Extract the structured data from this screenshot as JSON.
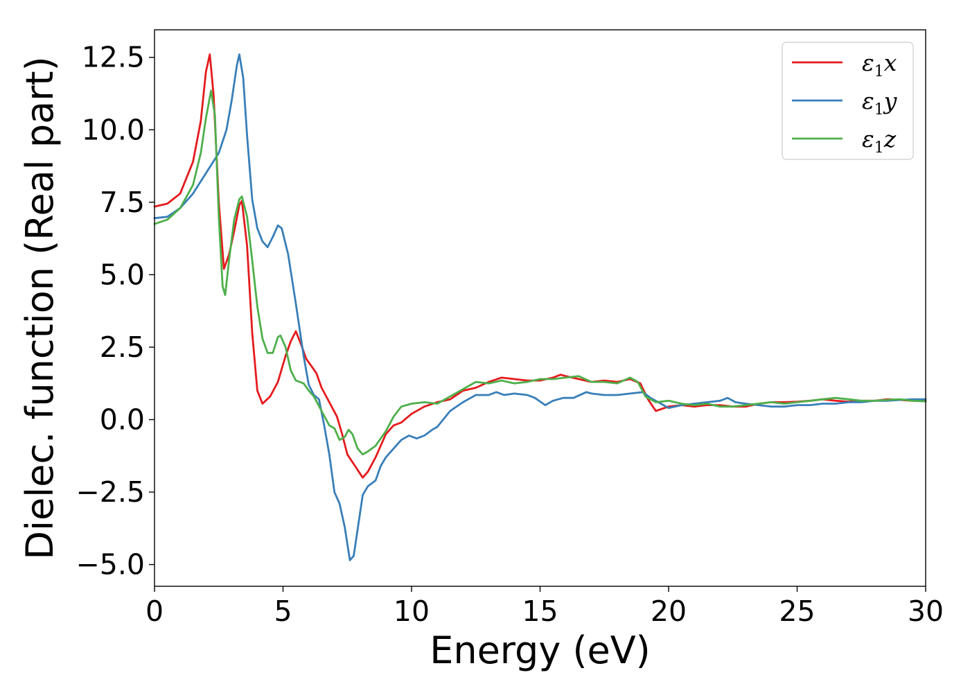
{
  "chart_data": {
    "type": "line",
    "title": "",
    "xlabel": "Energy (eV)",
    "ylabel": "Dielec. function (Real part)",
    "xlim": [
      0,
      30
    ],
    "ylim": [
      -5.75,
      13.45
    ],
    "grid": false,
    "legend_position": "top-right",
    "x_ticks": [
      0,
      5,
      10,
      15,
      20,
      25,
      30
    ],
    "x_tick_labels": [
      "0",
      "5",
      "10",
      "15",
      "20",
      "25",
      "30"
    ],
    "y_ticks": [
      -5.0,
      -2.5,
      0.0,
      2.5,
      5.0,
      7.5,
      10.0,
      12.5
    ],
    "y_tick_labels": [
      "−5.0",
      "−2.5",
      "0.0",
      "2.5",
      "5.0",
      "7.5",
      "10.0",
      "12.5"
    ],
    "series": [
      {
        "name": "ε₁x",
        "legend_main": "ε",
        "legend_sub": "1",
        "legend_var": "x",
        "color": "#e41a1c",
        "points": [
          [
            0,
            7.35
          ],
          [
            0.5,
            7.45
          ],
          [
            1.0,
            7.8
          ],
          [
            1.5,
            8.9
          ],
          [
            1.8,
            10.3
          ],
          [
            2.0,
            12.0
          ],
          [
            2.15,
            12.6
          ],
          [
            2.3,
            11.2
          ],
          [
            2.5,
            7.5
          ],
          [
            2.7,
            5.2
          ],
          [
            2.9,
            5.7
          ],
          [
            3.1,
            6.5
          ],
          [
            3.3,
            7.4
          ],
          [
            3.4,
            7.55
          ],
          [
            3.6,
            6.0
          ],
          [
            3.8,
            3.0
          ],
          [
            4.0,
            1.0
          ],
          [
            4.2,
            0.55
          ],
          [
            4.5,
            0.8
          ],
          [
            4.8,
            1.3
          ],
          [
            5.1,
            2.2
          ],
          [
            5.3,
            2.7
          ],
          [
            5.5,
            3.05
          ],
          [
            5.7,
            2.6
          ],
          [
            5.9,
            2.1
          ],
          [
            6.1,
            1.85
          ],
          [
            6.3,
            1.6
          ],
          [
            6.5,
            1.1
          ],
          [
            6.8,
            0.6
          ],
          [
            7.1,
            0.1
          ],
          [
            7.3,
            -0.5
          ],
          [
            7.5,
            -1.2
          ],
          [
            7.8,
            -1.6
          ],
          [
            8.1,
            -2.0
          ],
          [
            8.3,
            -1.8
          ],
          [
            8.6,
            -1.3
          ],
          [
            9.0,
            -0.5
          ],
          [
            9.3,
            -0.2
          ],
          [
            9.6,
            -0.1
          ],
          [
            10.0,
            0.2
          ],
          [
            10.5,
            0.45
          ],
          [
            11.0,
            0.6
          ],
          [
            11.5,
            0.7
          ],
          [
            12.0,
            1.0
          ],
          [
            12.5,
            1.1
          ],
          [
            13.0,
            1.3
          ],
          [
            13.5,
            1.45
          ],
          [
            14.0,
            1.4
          ],
          [
            14.5,
            1.35
          ],
          [
            15.0,
            1.35
          ],
          [
            15.5,
            1.45
          ],
          [
            15.8,
            1.55
          ],
          [
            16.0,
            1.5
          ],
          [
            16.5,
            1.4
          ],
          [
            17.0,
            1.3
          ],
          [
            17.5,
            1.35
          ],
          [
            18.0,
            1.3
          ],
          [
            18.5,
            1.4
          ],
          [
            18.9,
            1.25
          ],
          [
            19.2,
            0.7
          ],
          [
            19.5,
            0.3
          ],
          [
            20.0,
            0.45
          ],
          [
            20.5,
            0.5
          ],
          [
            21.0,
            0.45
          ],
          [
            21.5,
            0.5
          ],
          [
            22.0,
            0.5
          ],
          [
            22.5,
            0.45
          ],
          [
            23.0,
            0.45
          ],
          [
            23.5,
            0.55
          ],
          [
            24.0,
            0.6
          ],
          [
            24.5,
            0.6
          ],
          [
            25.0,
            0.62
          ],
          [
            25.5,
            0.65
          ],
          [
            26.0,
            0.7
          ],
          [
            26.5,
            0.65
          ],
          [
            27.0,
            0.62
          ],
          [
            27.5,
            0.65
          ],
          [
            28.0,
            0.65
          ],
          [
            28.5,
            0.7
          ],
          [
            29.0,
            0.68
          ],
          [
            29.5,
            0.65
          ],
          [
            30.0,
            0.65
          ]
        ]
      },
      {
        "name": "ε₁y",
        "legend_main": "ε",
        "legend_sub": "1",
        "legend_var": "y",
        "color": "#377eb8",
        "points": [
          [
            0,
            6.95
          ],
          [
            0.5,
            7.0
          ],
          [
            1.0,
            7.3
          ],
          [
            1.5,
            7.8
          ],
          [
            2.0,
            8.5
          ],
          [
            2.5,
            9.2
          ],
          [
            2.8,
            10.0
          ],
          [
            3.0,
            11.0
          ],
          [
            3.2,
            12.2
          ],
          [
            3.3,
            12.6
          ],
          [
            3.45,
            11.8
          ],
          [
            3.6,
            9.8
          ],
          [
            3.8,
            7.6
          ],
          [
            4.0,
            6.6
          ],
          [
            4.2,
            6.15
          ],
          [
            4.4,
            5.95
          ],
          [
            4.6,
            6.3
          ],
          [
            4.8,
            6.7
          ],
          [
            4.95,
            6.6
          ],
          [
            5.2,
            5.7
          ],
          [
            5.5,
            4.0
          ],
          [
            5.8,
            2.2
          ],
          [
            6.0,
            1.2
          ],
          [
            6.2,
            0.85
          ],
          [
            6.4,
            0.7
          ],
          [
            6.6,
            -0.2
          ],
          [
            6.8,
            -1.2
          ],
          [
            7.0,
            -2.5
          ],
          [
            7.2,
            -2.9
          ],
          [
            7.4,
            -3.7
          ],
          [
            7.6,
            -4.85
          ],
          [
            7.75,
            -4.7
          ],
          [
            7.9,
            -3.8
          ],
          [
            8.1,
            -2.6
          ],
          [
            8.3,
            -2.3
          ],
          [
            8.6,
            -2.1
          ],
          [
            8.8,
            -1.6
          ],
          [
            9.0,
            -1.3
          ],
          [
            9.3,
            -1.0
          ],
          [
            9.6,
            -0.7
          ],
          [
            9.9,
            -0.55
          ],
          [
            10.2,
            -0.65
          ],
          [
            10.5,
            -0.55
          ],
          [
            10.8,
            -0.35
          ],
          [
            11.0,
            -0.25
          ],
          [
            11.5,
            0.3
          ],
          [
            12.0,
            0.6
          ],
          [
            12.3,
            0.75
          ],
          [
            12.5,
            0.85
          ],
          [
            13.0,
            0.85
          ],
          [
            13.3,
            0.95
          ],
          [
            13.6,
            0.85
          ],
          [
            14.0,
            0.9
          ],
          [
            14.5,
            0.85
          ],
          [
            14.8,
            0.75
          ],
          [
            15.2,
            0.5
          ],
          [
            15.5,
            0.65
          ],
          [
            15.9,
            0.75
          ],
          [
            16.3,
            0.75
          ],
          [
            16.8,
            0.95
          ],
          [
            17.0,
            0.9
          ],
          [
            17.5,
            0.85
          ],
          [
            18.0,
            0.85
          ],
          [
            18.5,
            0.9
          ],
          [
            19.0,
            0.95
          ],
          [
            19.3,
            0.75
          ],
          [
            19.7,
            0.55
          ],
          [
            20.0,
            0.4
          ],
          [
            20.5,
            0.5
          ],
          [
            21.0,
            0.55
          ],
          [
            21.5,
            0.6
          ],
          [
            22.0,
            0.65
          ],
          [
            22.3,
            0.75
          ],
          [
            22.6,
            0.6
          ],
          [
            23.0,
            0.55
          ],
          [
            23.5,
            0.5
          ],
          [
            24.0,
            0.45
          ],
          [
            24.5,
            0.45
          ],
          [
            25.0,
            0.5
          ],
          [
            25.5,
            0.5
          ],
          [
            26.0,
            0.55
          ],
          [
            26.5,
            0.55
          ],
          [
            27.0,
            0.6
          ],
          [
            27.5,
            0.6
          ],
          [
            28.0,
            0.65
          ],
          [
            28.5,
            0.65
          ],
          [
            29.0,
            0.68
          ],
          [
            29.5,
            0.7
          ],
          [
            30.0,
            0.7
          ]
        ]
      },
      {
        "name": "ε₁z",
        "legend_main": "ε",
        "legend_sub": "1",
        "legend_var": "z",
        "color": "#4daf4a",
        "points": [
          [
            0,
            6.75
          ],
          [
            0.5,
            6.9
          ],
          [
            1.0,
            7.3
          ],
          [
            1.5,
            8.1
          ],
          [
            1.8,
            9.2
          ],
          [
            2.0,
            10.4
          ],
          [
            2.2,
            11.35
          ],
          [
            2.35,
            10.5
          ],
          [
            2.5,
            7.0
          ],
          [
            2.65,
            4.6
          ],
          [
            2.75,
            4.3
          ],
          [
            2.9,
            5.5
          ],
          [
            3.1,
            6.9
          ],
          [
            3.3,
            7.6
          ],
          [
            3.4,
            7.7
          ],
          [
            3.6,
            7.0
          ],
          [
            3.8,
            5.5
          ],
          [
            4.0,
            3.9
          ],
          [
            4.2,
            2.8
          ],
          [
            4.4,
            2.3
          ],
          [
            4.6,
            2.3
          ],
          [
            4.8,
            2.85
          ],
          [
            4.9,
            2.9
          ],
          [
            5.1,
            2.5
          ],
          [
            5.3,
            1.7
          ],
          [
            5.5,
            1.35
          ],
          [
            5.8,
            1.25
          ],
          [
            6.0,
            1.0
          ],
          [
            6.2,
            0.8
          ],
          [
            6.5,
            0.3
          ],
          [
            6.8,
            -0.2
          ],
          [
            7.0,
            -0.3
          ],
          [
            7.2,
            -0.7
          ],
          [
            7.4,
            -0.6
          ],
          [
            7.55,
            -0.35
          ],
          [
            7.7,
            -0.5
          ],
          [
            7.9,
            -1.0
          ],
          [
            8.1,
            -1.2
          ],
          [
            8.3,
            -1.1
          ],
          [
            8.6,
            -0.9
          ],
          [
            9.0,
            -0.4
          ],
          [
            9.3,
            0.1
          ],
          [
            9.6,
            0.45
          ],
          [
            10.0,
            0.55
          ],
          [
            10.5,
            0.6
          ],
          [
            11.0,
            0.55
          ],
          [
            11.5,
            0.8
          ],
          [
            12.0,
            1.05
          ],
          [
            12.5,
            1.3
          ],
          [
            13.0,
            1.25
          ],
          [
            13.5,
            1.35
          ],
          [
            14.0,
            1.25
          ],
          [
            14.5,
            1.3
          ],
          [
            15.0,
            1.4
          ],
          [
            15.5,
            1.4
          ],
          [
            16.0,
            1.45
          ],
          [
            16.5,
            1.5
          ],
          [
            17.0,
            1.3
          ],
          [
            17.5,
            1.3
          ],
          [
            18.0,
            1.25
          ],
          [
            18.5,
            1.45
          ],
          [
            18.8,
            1.3
          ],
          [
            19.1,
            0.8
          ],
          [
            19.5,
            0.6
          ],
          [
            20.0,
            0.65
          ],
          [
            20.5,
            0.55
          ],
          [
            21.0,
            0.5
          ],
          [
            21.5,
            0.55
          ],
          [
            22.0,
            0.45
          ],
          [
            22.5,
            0.45
          ],
          [
            23.0,
            0.5
          ],
          [
            23.5,
            0.55
          ],
          [
            24.0,
            0.6
          ],
          [
            24.5,
            0.55
          ],
          [
            25.0,
            0.6
          ],
          [
            25.5,
            0.65
          ],
          [
            26.0,
            0.7
          ],
          [
            26.5,
            0.75
          ],
          [
            27.0,
            0.7
          ],
          [
            27.5,
            0.65
          ],
          [
            28.0,
            0.65
          ],
          [
            28.5,
            0.68
          ],
          [
            29.0,
            0.7
          ],
          [
            29.5,
            0.65
          ],
          [
            30.0,
            0.63
          ]
        ]
      }
    ]
  }
}
